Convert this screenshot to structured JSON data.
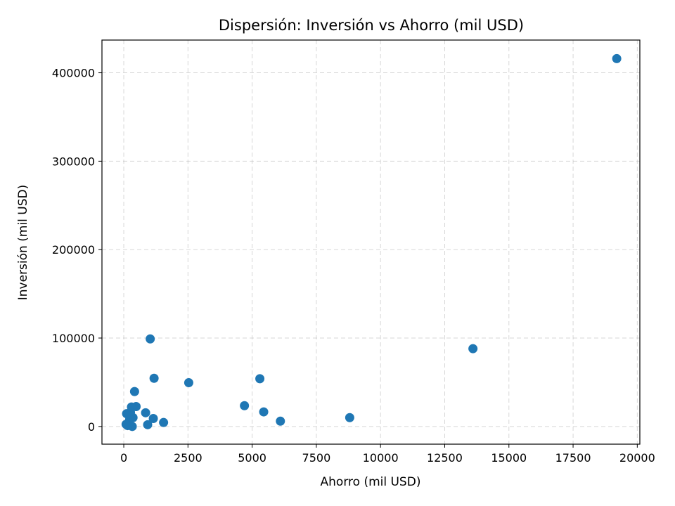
{
  "chart_data": {
    "type": "scatter",
    "title": "Dispersión: Inversión vs Ahorro (mil USD)",
    "xlabel": "Ahorro (mil USD)",
    "ylabel": "Inversión (mil USD)",
    "xlim": [
      -850,
      20100
    ],
    "ylim": [
      -20000,
      437000
    ],
    "x_ticks": [
      0,
      2500,
      5000,
      7500,
      10000,
      12500,
      15000,
      17500,
      20000
    ],
    "y_ticks": [
      0,
      100000,
      200000,
      300000,
      400000
    ],
    "x_tick_labels": [
      "0",
      "2500",
      "5000",
      "7500",
      "10000",
      "12500",
      "15000",
      "17500",
      "20000"
    ],
    "y_tick_labels": [
      "0",
      "100000",
      "200000",
      "300000",
      "400000"
    ],
    "grid": true,
    "marker_color": "#1f77b4",
    "series": [
      {
        "points": [
          {
            "x": 19200,
            "y": 416000
          },
          {
            "x": 13600,
            "y": 88000
          },
          {
            "x": 8800,
            "y": 10000
          },
          {
            "x": 6100,
            "y": 6000
          },
          {
            "x": 5450,
            "y": 16500
          },
          {
            "x": 5300,
            "y": 54000
          },
          {
            "x": 4700,
            "y": 23500
          },
          {
            "x": 2530,
            "y": 49500
          },
          {
            "x": 1550,
            "y": 4500
          },
          {
            "x": 1180,
            "y": 54500
          },
          {
            "x": 1150,
            "y": 9000
          },
          {
            "x": 1030,
            "y": 99000
          },
          {
            "x": 930,
            "y": 2000
          },
          {
            "x": 850,
            "y": 15500
          },
          {
            "x": 480,
            "y": 22500
          },
          {
            "x": 420,
            "y": 39500
          },
          {
            "x": 360,
            "y": 10000
          },
          {
            "x": 330,
            "y": 0
          },
          {
            "x": 300,
            "y": 22000
          },
          {
            "x": 260,
            "y": 16000
          },
          {
            "x": 230,
            "y": 8000
          },
          {
            "x": 200,
            "y": 4000
          },
          {
            "x": 150,
            "y": 1000
          },
          {
            "x": 110,
            "y": 14500
          },
          {
            "x": 90,
            "y": 2500
          }
        ]
      }
    ]
  }
}
